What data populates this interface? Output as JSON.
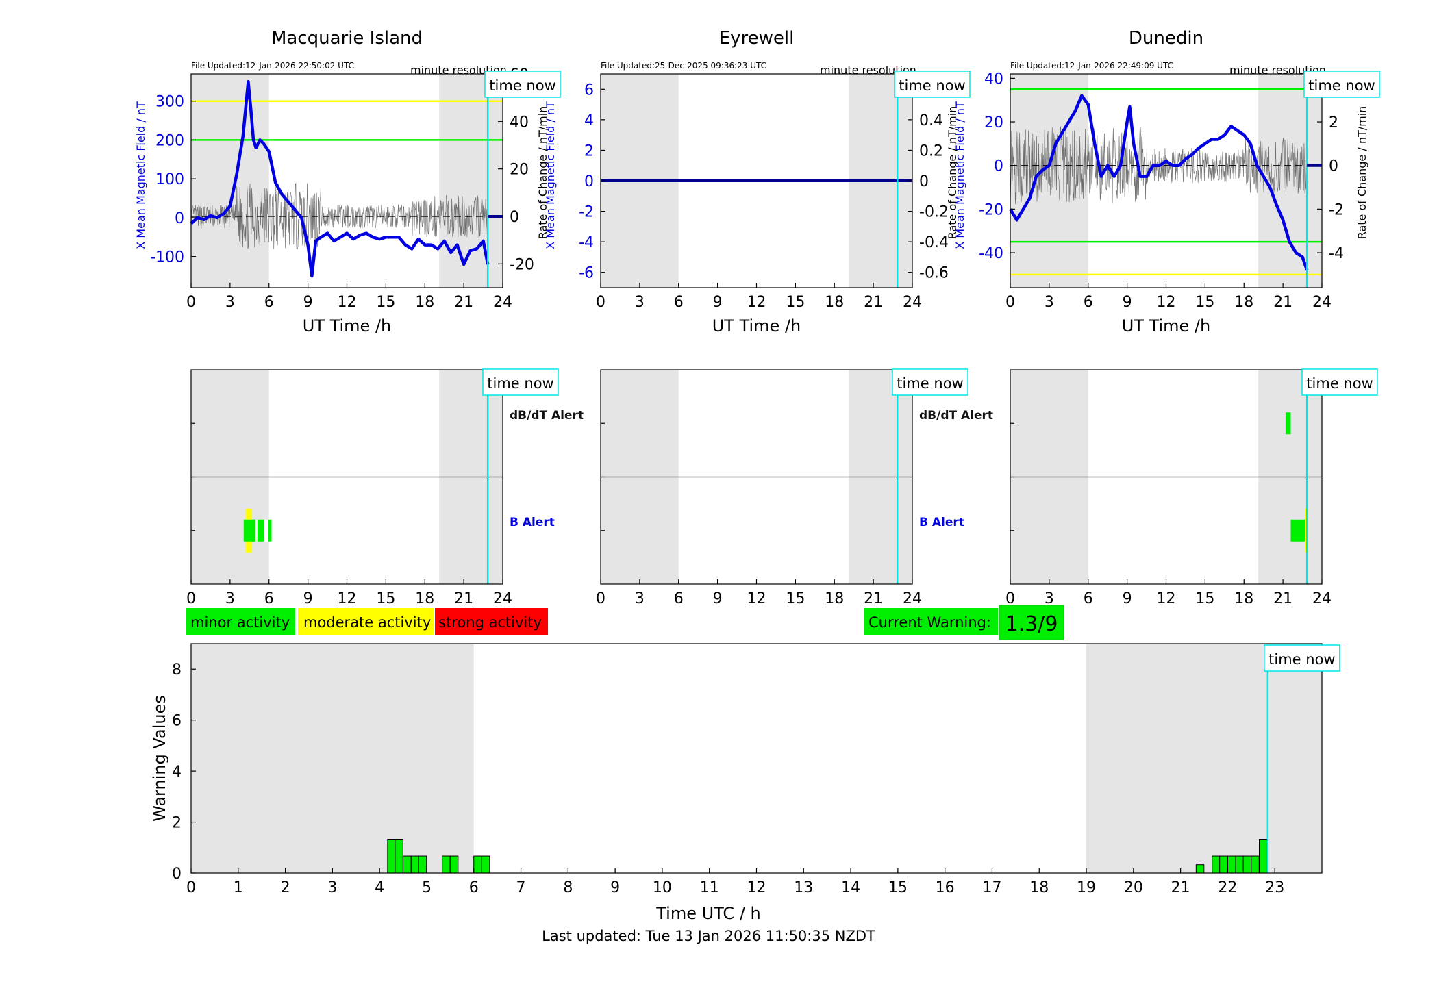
{
  "colors": {
    "night": "#e5e5e5",
    "field": "#0000e0",
    "now": "#00e5e5",
    "green": "#00ee00",
    "yellow": "#ffff00",
    "red": "#ff0000"
  },
  "panels": [
    {
      "station": "Macquarie Island",
      "updated": "File Updated:12-Jan-2026 22:50:02 UTC",
      "resolution": "minute resolution",
      "now_label": "time now",
      "xlabel": "UT Time /h",
      "ylabel_left": "X Mean Magnetic Field / nT",
      "ylabel_right": "Rate of Change / nT/min",
      "xticks": [
        "0",
        "3",
        "6",
        "9",
        "12",
        "15",
        "18",
        "21",
        "24"
      ],
      "yticks_left": [
        "300",
        "200",
        "100",
        "0",
        "-100"
      ],
      "yticks_right": [
        "60",
        "40",
        "20",
        "0",
        "-20"
      ]
    },
    {
      "station": "Eyrewell",
      "updated": "File Updated:25-Dec-2025 09:36:23 UTC",
      "resolution": "minute resolution",
      "now_label": "time now",
      "xlabel": "UT Time /h",
      "ylabel_left": "X Mean Magnetic Field / nT",
      "ylabel_right": "Rate of Change / nT/min",
      "xticks": [
        "0",
        "3",
        "6",
        "9",
        "12",
        "15",
        "18",
        "21",
        "24"
      ],
      "yticks_left": [
        "6",
        "4",
        "2",
        "0",
        "-2",
        "-4",
        "-6"
      ],
      "yticks_right": [
        "0.6",
        "0.4",
        "0.2",
        "0",
        "-0.2",
        "-0.4",
        "-0.6"
      ]
    },
    {
      "station": "Dunedin",
      "updated": "File Updated:12-Jan-2026 22:49:09 UTC",
      "resolution": "minute resolution",
      "now_label": "time now",
      "xlabel": "UT Time /h",
      "ylabel_left": "X Mean Magnetic Field / nT",
      "ylabel_right": "Rate of Change / nT/min",
      "xticks": [
        "0",
        "3",
        "6",
        "9",
        "12",
        "15",
        "18",
        "21",
        "24"
      ],
      "yticks_left": [
        "40",
        "20",
        "0",
        "-20",
        "-40"
      ],
      "yticks_right": [
        "4",
        "2",
        "0",
        "-2",
        "-4"
      ]
    }
  ],
  "alerts": {
    "dbdt_label": "dB/dT Alert",
    "b_label": "B Alert",
    "now_label": "time now"
  },
  "legend": {
    "minor": "minor activity",
    "moderate": "moderate activity",
    "strong": "strong activity",
    "current_label": "Current Warning:",
    "current_value": "1.3/9"
  },
  "bottom": {
    "ylabel": "Warning Values",
    "xlabel": "Time UTC / h",
    "now_label": "time now",
    "footer": "Last updated: Tue 13 Jan 2026 11:50:35 NZDT",
    "xticks": [
      "0",
      "1",
      "2",
      "3",
      "4",
      "5",
      "6",
      "7",
      "8",
      "9",
      "10",
      "11",
      "12",
      "13",
      "14",
      "15",
      "16",
      "17",
      "18",
      "19",
      "20",
      "21",
      "22",
      "23"
    ],
    "yticks": [
      "0",
      "2",
      "4",
      "6",
      "8"
    ]
  },
  "chart_data": [
    {
      "type": "line",
      "station": "Macquarie Island",
      "x_range": [
        0,
        24
      ],
      "ylim_left": [
        -180,
        370
      ],
      "ylim_right": [
        -30,
        60
      ],
      "now_hour": 22.85,
      "night_hours": [
        [
          0,
          6
        ],
        [
          19.1,
          24
        ]
      ],
      "thresholds_nT": [
        {
          "value": 300,
          "color": "yellow"
        },
        {
          "value": 200,
          "color": "green"
        }
      ],
      "field_points": [
        [
          0,
          -15
        ],
        [
          0.5,
          0
        ],
        [
          1,
          -5
        ],
        [
          1.5,
          5
        ],
        [
          2,
          0
        ],
        [
          2.5,
          10
        ],
        [
          3,
          30
        ],
        [
          3.5,
          110
        ],
        [
          4,
          210
        ],
        [
          4.2,
          280
        ],
        [
          4.4,
          350
        ],
        [
          4.6,
          280
        ],
        [
          4.8,
          200
        ],
        [
          5,
          180
        ],
        [
          5.3,
          200
        ],
        [
          5.6,
          190
        ],
        [
          6,
          170
        ],
        [
          6.5,
          90
        ],
        [
          7,
          60
        ],
        [
          7.5,
          40
        ],
        [
          8,
          20
        ],
        [
          8.5,
          0
        ],
        [
          9,
          -70
        ],
        [
          9.3,
          -150
        ],
        [
          9.6,
          -60
        ],
        [
          10,
          -50
        ],
        [
          10.5,
          -40
        ],
        [
          11,
          -60
        ],
        [
          11.5,
          -50
        ],
        [
          12,
          -40
        ],
        [
          12.5,
          -55
        ],
        [
          13,
          -45
        ],
        [
          13.5,
          -40
        ],
        [
          14,
          -50
        ],
        [
          14.5,
          -55
        ],
        [
          15,
          -50
        ],
        [
          15.5,
          -50
        ],
        [
          16,
          -50
        ],
        [
          16.5,
          -70
        ],
        [
          17,
          -80
        ],
        [
          17.5,
          -55
        ],
        [
          18,
          -70
        ],
        [
          18.5,
          -70
        ],
        [
          19,
          -80
        ],
        [
          19.5,
          -60
        ],
        [
          20,
          -90
        ],
        [
          20.5,
          -70
        ],
        [
          21,
          -120
        ],
        [
          21.5,
          -85
        ],
        [
          22,
          -80
        ],
        [
          22.5,
          -60
        ],
        [
          22.85,
          -120
        ]
      ],
      "rate_baseline": 0
    },
    {
      "type": "line",
      "station": "Eyrewell",
      "x_range": [
        0,
        24
      ],
      "ylim_left": [
        -7,
        7
      ],
      "ylim_right": [
        -0.7,
        0.7
      ],
      "now_hour": 22.85,
      "night_hours": [
        [
          0,
          6
        ],
        [
          19.1,
          24
        ]
      ],
      "field_points": [
        [
          0,
          0
        ],
        [
          24,
          0
        ]
      ],
      "rate_baseline": 0
    },
    {
      "type": "line",
      "station": "Dunedin",
      "x_range": [
        0,
        24
      ],
      "ylim_left": [
        -56,
        42
      ],
      "ylim_right": [
        -5.6,
        4.2
      ],
      "now_hour": 22.85,
      "night_hours": [
        [
          0,
          6
        ],
        [
          19.1,
          24
        ]
      ],
      "thresholds_nT": [
        {
          "value": 35,
          "color": "green"
        },
        {
          "value": -35,
          "color": "green"
        },
        {
          "value": -50,
          "color": "yellow"
        }
      ],
      "field_points": [
        [
          0,
          -20
        ],
        [
          0.5,
          -25
        ],
        [
          1,
          -20
        ],
        [
          1.5,
          -15
        ],
        [
          2,
          -5
        ],
        [
          2.5,
          -2
        ],
        [
          3,
          0
        ],
        [
          3.5,
          10
        ],
        [
          4,
          15
        ],
        [
          4.5,
          20
        ],
        [
          5,
          25
        ],
        [
          5.5,
          32
        ],
        [
          6,
          28
        ],
        [
          6.5,
          10
        ],
        [
          7,
          -5
        ],
        [
          7.5,
          0
        ],
        [
          8,
          -5
        ],
        [
          8.5,
          0
        ],
        [
          9,
          20
        ],
        [
          9.2,
          27
        ],
        [
          9.5,
          10
        ],
        [
          10,
          -5
        ],
        [
          10.5,
          -5
        ],
        [
          11,
          0
        ],
        [
          11.5,
          0
        ],
        [
          12,
          2
        ],
        [
          12.5,
          0
        ],
        [
          13,
          0
        ],
        [
          13.5,
          3
        ],
        [
          14,
          5
        ],
        [
          14.5,
          8
        ],
        [
          15,
          10
        ],
        [
          15.5,
          12
        ],
        [
          16,
          12
        ],
        [
          16.5,
          14
        ],
        [
          17,
          18
        ],
        [
          17.5,
          16
        ],
        [
          18,
          14
        ],
        [
          18.5,
          10
        ],
        [
          19,
          0
        ],
        [
          19.5,
          -5
        ],
        [
          20,
          -10
        ],
        [
          20.5,
          -18
        ],
        [
          21,
          -25
        ],
        [
          21.5,
          -35
        ],
        [
          22,
          -40
        ],
        [
          22.5,
          -42
        ],
        [
          22.85,
          -48
        ]
      ],
      "rate_baseline": 0
    },
    {
      "type": "bar",
      "title": "Warning Values",
      "xlabel": "Time UTC / h",
      "ylabel": "Warning Values",
      "xlim": [
        0,
        24
      ],
      "ylim": [
        0,
        9
      ],
      "now_hour": 22.85,
      "night_hours": [
        [
          0,
          6
        ],
        [
          19,
          24
        ]
      ],
      "bin_width_h": 0.1667,
      "bars": [
        [
          4.17,
          1.33
        ],
        [
          4.33,
          1.33
        ],
        [
          4.5,
          0.67
        ],
        [
          4.67,
          0.67
        ],
        [
          4.83,
          0.67
        ],
        [
          5.33,
          0.67
        ],
        [
          5.5,
          0.67
        ],
        [
          6,
          0.67
        ],
        [
          6.17,
          0.67
        ],
        [
          21.33,
          0.33
        ],
        [
          21.67,
          0.67
        ],
        [
          21.83,
          0.67
        ],
        [
          22,
          0.67
        ],
        [
          22.17,
          0.67
        ],
        [
          22.33,
          0.67
        ],
        [
          22.5,
          0.67
        ],
        [
          22.67,
          1.33
        ]
      ]
    }
  ]
}
